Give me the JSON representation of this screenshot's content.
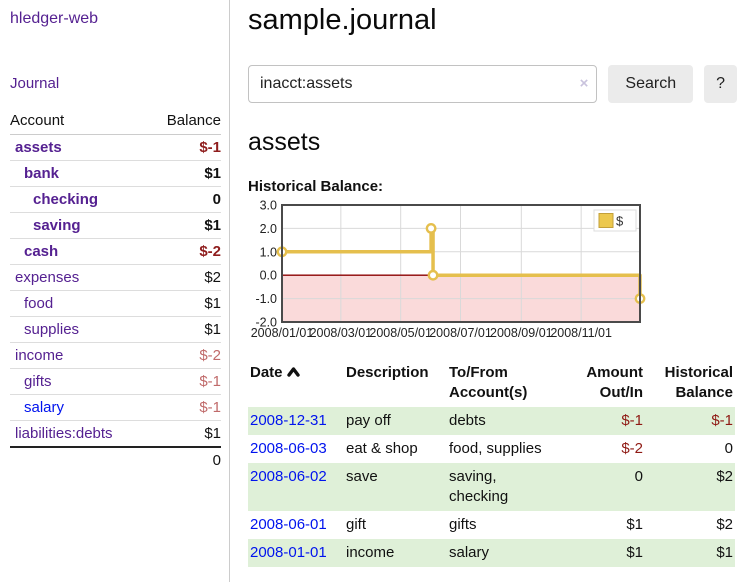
{
  "colors": {
    "link_purple": "#552191",
    "link_blue": "#0013ee",
    "negative_strong": "#8f1d1d",
    "negative_soft": "#c06a6a",
    "row_green": "#dff0d8",
    "chart_line_gold": "#e5bf4d",
    "chart_negative_region": "#fadada",
    "chart_zero_line": "#8b0000"
  },
  "sidebar": {
    "app_title": "hledger-web",
    "nav": {
      "journal": "Journal"
    },
    "accounts_table": {
      "headers": [
        "Account",
        "Balance"
      ],
      "rows": [
        {
          "name": "assets",
          "balance": "$-1",
          "level": 1,
          "emph": true,
          "balance_class": "neg-strong"
        },
        {
          "name": "bank",
          "balance": "$1",
          "level": 2,
          "emph": true,
          "balance_class": "pos-strong"
        },
        {
          "name": "checking",
          "balance": "0",
          "level": 3,
          "emph": true,
          "balance_class": "pos-strong"
        },
        {
          "name": "saving",
          "balance": "$1",
          "level": 3,
          "emph": true,
          "balance_class": "pos-strong"
        },
        {
          "name": "cash",
          "balance": "$-2",
          "level": 2,
          "emph": true,
          "balance_class": "neg-strong"
        },
        {
          "name": "expenses",
          "balance": "$2",
          "level": 1,
          "emph": false,
          "balance_class": ""
        },
        {
          "name": "food",
          "balance": "$1",
          "level": 2,
          "emph": false,
          "balance_class": ""
        },
        {
          "name": "supplies",
          "balance": "$1",
          "level": 2,
          "emph": false,
          "balance_class": ""
        },
        {
          "name": "income",
          "balance": "$-2",
          "level": 1,
          "emph": false,
          "balance_class": "neg-soft"
        },
        {
          "name": "gifts",
          "balance": "$-1",
          "level": 2,
          "emph": false,
          "balance_class": "neg-soft"
        },
        {
          "name": "salary",
          "balance": "$-1",
          "level": 2,
          "emph": false,
          "balance_class": "neg-soft",
          "link_class": "unvisited"
        },
        {
          "name": "liabilities:debts",
          "balance": "$1",
          "level": 1,
          "emph": false,
          "balance_class": ""
        }
      ],
      "total": "0"
    }
  },
  "main": {
    "title": "sample.journal",
    "search": {
      "value": "inacct:assets",
      "clear_symbol": "×",
      "search_button": "Search",
      "help_button": "?"
    },
    "account_heading": "assets",
    "chart_heading": "Historical Balance:",
    "register_table": {
      "headers": {
        "date": "Date",
        "description": "Description",
        "accounts": "To/From Account(s)",
        "amount": "Amount Out/In",
        "balance": "Historical Balance"
      },
      "sort": {
        "column": "date",
        "direction": "ascending"
      },
      "rows": [
        {
          "date": "2008-12-31",
          "description": "pay off",
          "accounts": "debts",
          "amount": "$-1",
          "balance": "$-1",
          "amount_neg": true,
          "balance_neg": true
        },
        {
          "date": "2008-06-03",
          "description": "eat & shop",
          "accounts": "food, supplies",
          "amount": "$-2",
          "balance": "0",
          "amount_neg": true,
          "balance_neg": false
        },
        {
          "date": "2008-06-02",
          "description": "save",
          "accounts": "saving, checking",
          "amount": "0",
          "balance": "$2",
          "amount_neg": false,
          "balance_neg": false
        },
        {
          "date": "2008-06-01",
          "description": "gift",
          "accounts": "gifts",
          "amount": "$1",
          "balance": "$2",
          "amount_neg": false,
          "balance_neg": false
        },
        {
          "date": "2008-01-01",
          "description": "income",
          "accounts": "salary",
          "amount": "$1",
          "balance": "$1",
          "amount_neg": false,
          "balance_neg": false
        }
      ]
    }
  },
  "chart_data": {
    "type": "line",
    "step": true,
    "title": "Historical Balance:",
    "legend": [
      {
        "label": "$",
        "color": "#e5bf4d",
        "position": "top-right"
      }
    ],
    "ylim": [
      -2.0,
      3.0
    ],
    "y_ticks": [
      "3.0",
      "2.0",
      "1.0",
      "0.0",
      "-1.0",
      "-2.0"
    ],
    "y_tick_values": [
      3,
      2,
      1,
      0,
      -1,
      -2
    ],
    "x_range_days": 365,
    "x_ticks": [
      {
        "day": 0,
        "label": "2008/01/01"
      },
      {
        "day": 60,
        "label": "2008/03/01"
      },
      {
        "day": 121,
        "label": "2008/05/01"
      },
      {
        "day": 182,
        "label": "2008/07/01"
      },
      {
        "day": 244,
        "label": "2008/09/01"
      },
      {
        "day": 305,
        "label": "2008/11/01"
      }
    ],
    "points": [
      {
        "date": "2008-01-01",
        "day": 0,
        "value": 1
      },
      {
        "date": "2008-06-01",
        "day": 152,
        "value": 2
      },
      {
        "date": "2008-06-03",
        "day": 154,
        "value": 0
      },
      {
        "date": "2008-12-31",
        "day": 365,
        "value": -1
      }
    ],
    "grid": true,
    "negative_region_fill": "#fadada",
    "zero_line_color": "#8b0000",
    "line_color": "#e5bf4d",
    "border_color": "#4a4a4a"
  }
}
